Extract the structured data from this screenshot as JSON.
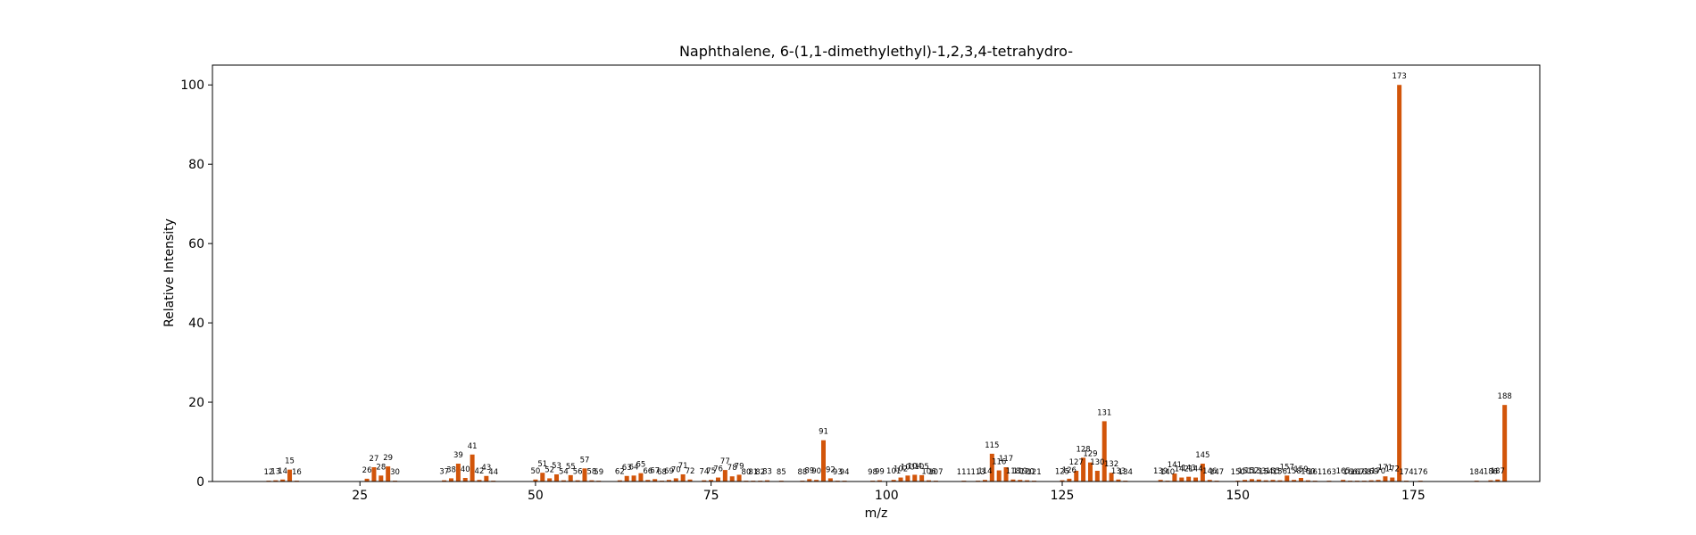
{
  "chart_data": {
    "type": "bar",
    "title": "Naphthalene, 6-(1,1-dimethylethyl)-1,2,3,4-tetrahydro-",
    "xlabel": "m/z",
    "ylabel": "Relative Intensity",
    "xlim": [
      4,
      193
    ],
    "ylim": [
      0,
      105
    ],
    "xticks": [
      25,
      50,
      75,
      100,
      125,
      150,
      175
    ],
    "yticks": [
      0,
      20,
      40,
      60,
      80,
      100
    ],
    "grid": false,
    "bar_color": "#d2550a",
    "peaks": [
      {
        "mz": 12,
        "intensity": 0.2
      },
      {
        "mz": 13,
        "intensity": 0.3
      },
      {
        "mz": 14,
        "intensity": 0.5
      },
      {
        "mz": 15,
        "intensity": 3.0
      },
      {
        "mz": 16,
        "intensity": 0.2
      },
      {
        "mz": 26,
        "intensity": 0.7
      },
      {
        "mz": 27,
        "intensity": 3.6
      },
      {
        "mz": 28,
        "intensity": 1.5
      },
      {
        "mz": 29,
        "intensity": 3.8
      },
      {
        "mz": 30,
        "intensity": 0.2
      },
      {
        "mz": 37,
        "intensity": 0.3
      },
      {
        "mz": 38,
        "intensity": 0.8
      },
      {
        "mz": 39,
        "intensity": 4.5
      },
      {
        "mz": 40,
        "intensity": 0.9
      },
      {
        "mz": 41,
        "intensity": 6.8
      },
      {
        "mz": 42,
        "intensity": 0.4
      },
      {
        "mz": 43,
        "intensity": 1.4
      },
      {
        "mz": 44,
        "intensity": 0.2
      },
      {
        "mz": 50,
        "intensity": 0.5
      },
      {
        "mz": 51,
        "intensity": 2.2
      },
      {
        "mz": 52,
        "intensity": 0.8
      },
      {
        "mz": 53,
        "intensity": 1.8
      },
      {
        "mz": 54,
        "intensity": 0.3
      },
      {
        "mz": 55,
        "intensity": 1.6
      },
      {
        "mz": 56,
        "intensity": 0.3
      },
      {
        "mz": 57,
        "intensity": 3.3
      },
      {
        "mz": 58,
        "intensity": 0.3
      },
      {
        "mz": 59,
        "intensity": 0.2
      },
      {
        "mz": 62,
        "intensity": 0.3
      },
      {
        "mz": 63,
        "intensity": 1.4
      },
      {
        "mz": 64,
        "intensity": 1.5
      },
      {
        "mz": 65,
        "intensity": 2.1
      },
      {
        "mz": 66,
        "intensity": 0.4
      },
      {
        "mz": 67,
        "intensity": 0.6
      },
      {
        "mz": 68,
        "intensity": 0.2
      },
      {
        "mz": 69,
        "intensity": 0.4
      },
      {
        "mz": 70,
        "intensity": 0.8
      },
      {
        "mz": 71,
        "intensity": 1.8
      },
      {
        "mz": 72,
        "intensity": 0.5
      },
      {
        "mz": 74,
        "intensity": 0.3
      },
      {
        "mz": 75,
        "intensity": 0.4
      },
      {
        "mz": 76,
        "intensity": 1.0
      },
      {
        "mz": 77,
        "intensity": 2.9
      },
      {
        "mz": 78,
        "intensity": 1.3
      },
      {
        "mz": 79,
        "intensity": 1.7
      },
      {
        "mz": 80,
        "intensity": 0.2
      },
      {
        "mz": 81,
        "intensity": 0.2
      },
      {
        "mz": 82,
        "intensity": 0.2
      },
      {
        "mz": 83,
        "intensity": 0.3
      },
      {
        "mz": 85,
        "intensity": 0.2
      },
      {
        "mz": 88,
        "intensity": 0.2
      },
      {
        "mz": 89,
        "intensity": 0.6
      },
      {
        "mz": 90,
        "intensity": 0.4
      },
      {
        "mz": 91,
        "intensity": 10.4
      },
      {
        "mz": 92,
        "intensity": 0.8
      },
      {
        "mz": 93,
        "intensity": 0.2
      },
      {
        "mz": 94,
        "intensity": 0.2
      },
      {
        "mz": 98,
        "intensity": 0.2
      },
      {
        "mz": 99,
        "intensity": 0.3
      },
      {
        "mz": 101,
        "intensity": 0.4
      },
      {
        "mz": 102,
        "intensity": 1.0
      },
      {
        "mz": 103,
        "intensity": 1.5
      },
      {
        "mz": 104,
        "intensity": 1.7
      },
      {
        "mz": 105,
        "intensity": 1.6
      },
      {
        "mz": 106,
        "intensity": 0.3
      },
      {
        "mz": 107,
        "intensity": 0.2
      },
      {
        "mz": 111,
        "intensity": 0.2
      },
      {
        "mz": 113,
        "intensity": 0.2
      },
      {
        "mz": 114,
        "intensity": 0.4
      },
      {
        "mz": 115,
        "intensity": 7.0
      },
      {
        "mz": 116,
        "intensity": 2.8
      },
      {
        "mz": 117,
        "intensity": 3.6
      },
      {
        "mz": 118,
        "intensity": 0.5
      },
      {
        "mz": 119,
        "intensity": 0.4
      },
      {
        "mz": 120,
        "intensity": 0.3
      },
      {
        "mz": 121,
        "intensity": 0.2
      },
      {
        "mz": 125,
        "intensity": 0.3
      },
      {
        "mz": 126,
        "intensity": 0.7
      },
      {
        "mz": 127,
        "intensity": 2.7
      },
      {
        "mz": 128,
        "intensity": 6.0
      },
      {
        "mz": 129,
        "intensity": 4.8
      },
      {
        "mz": 130,
        "intensity": 2.7
      },
      {
        "mz": 131,
        "intensity": 15.2
      },
      {
        "mz": 132,
        "intensity": 2.2
      },
      {
        "mz": 133,
        "intensity": 0.5
      },
      {
        "mz": 134,
        "intensity": 0.2
      },
      {
        "mz": 139,
        "intensity": 0.4
      },
      {
        "mz": 140,
        "intensity": 0.2
      },
      {
        "mz": 141,
        "intensity": 2.0
      },
      {
        "mz": 142,
        "intensity": 1.0
      },
      {
        "mz": 143,
        "intensity": 1.2
      },
      {
        "mz": 144,
        "intensity": 1.0
      },
      {
        "mz": 145,
        "intensity": 4.5
      },
      {
        "mz": 146,
        "intensity": 0.4
      },
      {
        "mz": 147,
        "intensity": 0.2
      },
      {
        "mz": 150,
        "intensity": 0.2
      },
      {
        "mz": 151,
        "intensity": 0.4
      },
      {
        "mz": 152,
        "intensity": 0.6
      },
      {
        "mz": 153,
        "intensity": 0.5
      },
      {
        "mz": 154,
        "intensity": 0.3
      },
      {
        "mz": 155,
        "intensity": 0.4
      },
      {
        "mz": 156,
        "intensity": 0.3
      },
      {
        "mz": 157,
        "intensity": 1.5
      },
      {
        "mz": 158,
        "intensity": 0.4
      },
      {
        "mz": 159,
        "intensity": 0.9
      },
      {
        "mz": 160,
        "intensity": 0.3
      },
      {
        "mz": 161,
        "intensity": 0.2
      },
      {
        "mz": 163,
        "intensity": 0.2
      },
      {
        "mz": 165,
        "intensity": 0.4
      },
      {
        "mz": 166,
        "intensity": 0.2
      },
      {
        "mz": 167,
        "intensity": 0.2
      },
      {
        "mz": 168,
        "intensity": 0.2
      },
      {
        "mz": 169,
        "intensity": 0.3
      },
      {
        "mz": 170,
        "intensity": 0.4
      },
      {
        "mz": 171,
        "intensity": 1.3
      },
      {
        "mz": 172,
        "intensity": 1.0
      },
      {
        "mz": 173,
        "intensity": 100
      },
      {
        "mz": 174,
        "intensity": 0.2
      },
      {
        "mz": 176,
        "intensity": 0.2
      },
      {
        "mz": 184,
        "intensity": 0.2
      },
      {
        "mz": 186,
        "intensity": 0.3
      },
      {
        "mz": 187,
        "intensity": 0.5
      },
      {
        "mz": 188,
        "intensity": 19.3
      }
    ]
  }
}
